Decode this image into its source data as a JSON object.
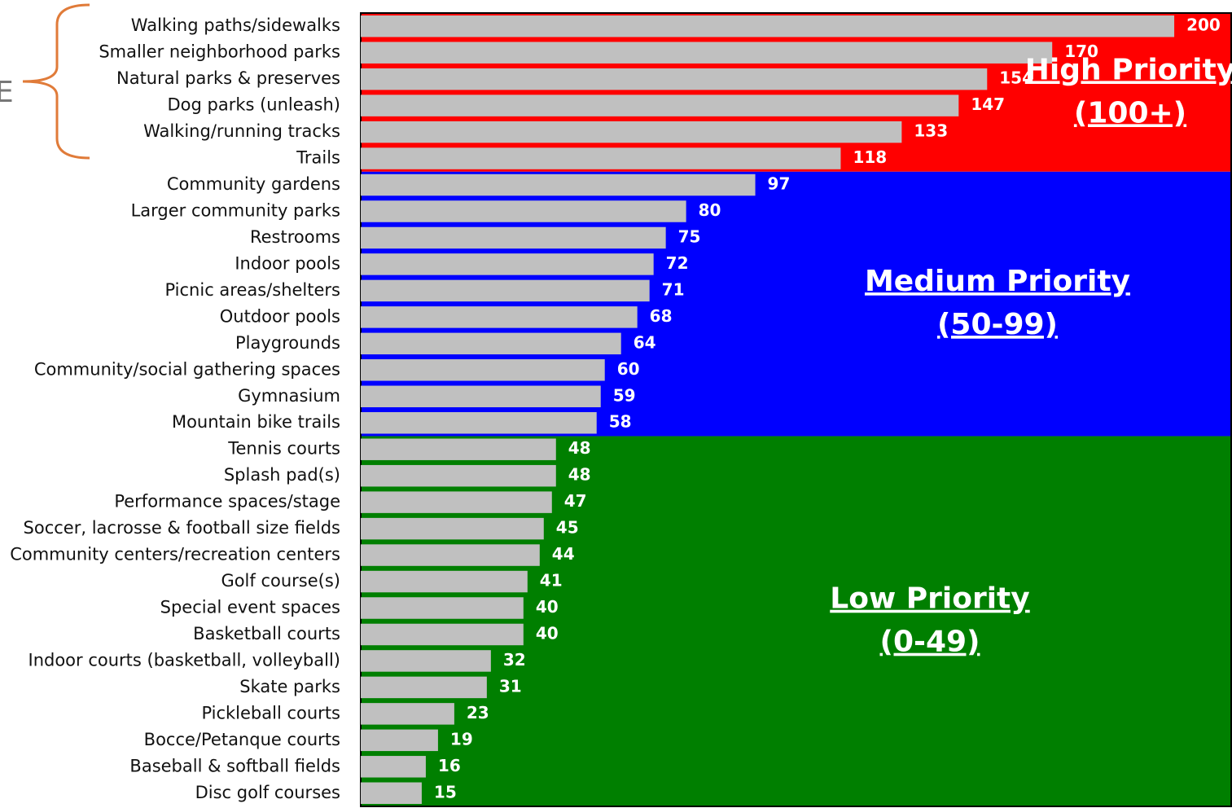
{
  "chart_data": {
    "type": "barh",
    "categories": [
      "Walking paths/sidewalks",
      "Smaller neighborhood parks",
      "Natural parks & preserves",
      "Dog parks (unleash)",
      "Walking/running tracks",
      "Trails",
      "Community gardens",
      "Larger community parks",
      "Restrooms",
      "Indoor pools",
      "Picnic areas/shelters",
      "Outdoor pools",
      "Playgrounds",
      "Community/social gathering spaces",
      "Gymnasium",
      "Mountain bike trails",
      "Tennis courts",
      "Splash pad(s)",
      "Performance spaces/stage",
      "Soccer, lacrosse & football size fields",
      "Community centers/recreation centers",
      "Golf course(s)",
      "Special event spaces",
      "Basketball courts",
      "Indoor courts (basketball, volleyball)",
      "Skate parks",
      "Pickleball courts",
      "Bocce/Petanque courts",
      "Baseball & softball fields",
      "Disc golf courses"
    ],
    "values": [
      200,
      170,
      154,
      147,
      133,
      118,
      97,
      80,
      75,
      72,
      71,
      68,
      64,
      60,
      59,
      58,
      48,
      48,
      47,
      45,
      44,
      41,
      40,
      40,
      32,
      31,
      23,
      19,
      16,
      15
    ],
    "color": "#c0c0c0",
    "xlim": [
      0,
      214
    ],
    "bands": [
      {
        "name": "High Priority",
        "range": "(100+)",
        "min": 100,
        "color": "#ff0000"
      },
      {
        "name": "Medium Priority",
        "range": "(50-99)",
        "min": 50,
        "color": "#0000ff"
      },
      {
        "name": "Low Priority",
        "range": "(0-49)",
        "min": 0,
        "color": "#007f00"
      }
    ],
    "side_label": "E"
  }
}
